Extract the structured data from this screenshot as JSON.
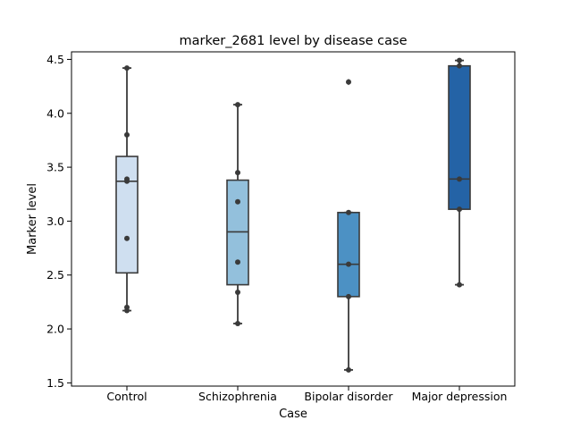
{
  "chart_data": {
    "type": "box",
    "title": "marker_2681 level by disease case",
    "xlabel": "Case",
    "ylabel": "Marker level",
    "ylim": [
      1.47,
      4.57
    ],
    "yticks": [
      "1.5",
      "2.0",
      "2.5",
      "3.0",
      "3.5",
      "4.0",
      "4.5"
    ],
    "categories": [
      "Control",
      "Schizophrenia",
      "Bipolar disorder",
      "Major depression"
    ],
    "colors": [
      "#cfdff0",
      "#93c0dc",
      "#4c91c4",
      "#2463a6"
    ],
    "boxes": [
      {
        "q1": 2.52,
        "median": 3.37,
        "q3": 3.6,
        "whisker_low": 2.17,
        "whisker_high": 4.42,
        "outliers": []
      },
      {
        "q1": 2.41,
        "median": 2.9,
        "q3": 3.38,
        "whisker_low": 2.05,
        "whisker_high": 4.08,
        "outliers": []
      },
      {
        "q1": 2.3,
        "median": 2.6,
        "q3": 3.08,
        "whisker_low": 1.62,
        "whisker_high": 3.08,
        "outliers": [
          4.29
        ]
      },
      {
        "q1": 3.11,
        "median": 3.39,
        "q3": 4.44,
        "whisker_low": 2.41,
        "whisker_high": 4.49,
        "outliers": []
      }
    ],
    "points": [
      [
        4.42,
        3.8,
        3.39,
        3.37,
        2.84,
        2.2,
        2.17
      ],
      [
        4.08,
        3.45,
        3.18,
        2.62,
        2.34,
        2.05
      ],
      [
        4.29,
        3.08,
        2.6,
        2.3,
        1.62
      ],
      [
        4.49,
        4.44,
        3.39,
        3.11,
        2.41
      ]
    ],
    "point_color": "#3a3a3a",
    "line_color": "#3a3a3a",
    "grid": false,
    "legend": "none"
  }
}
